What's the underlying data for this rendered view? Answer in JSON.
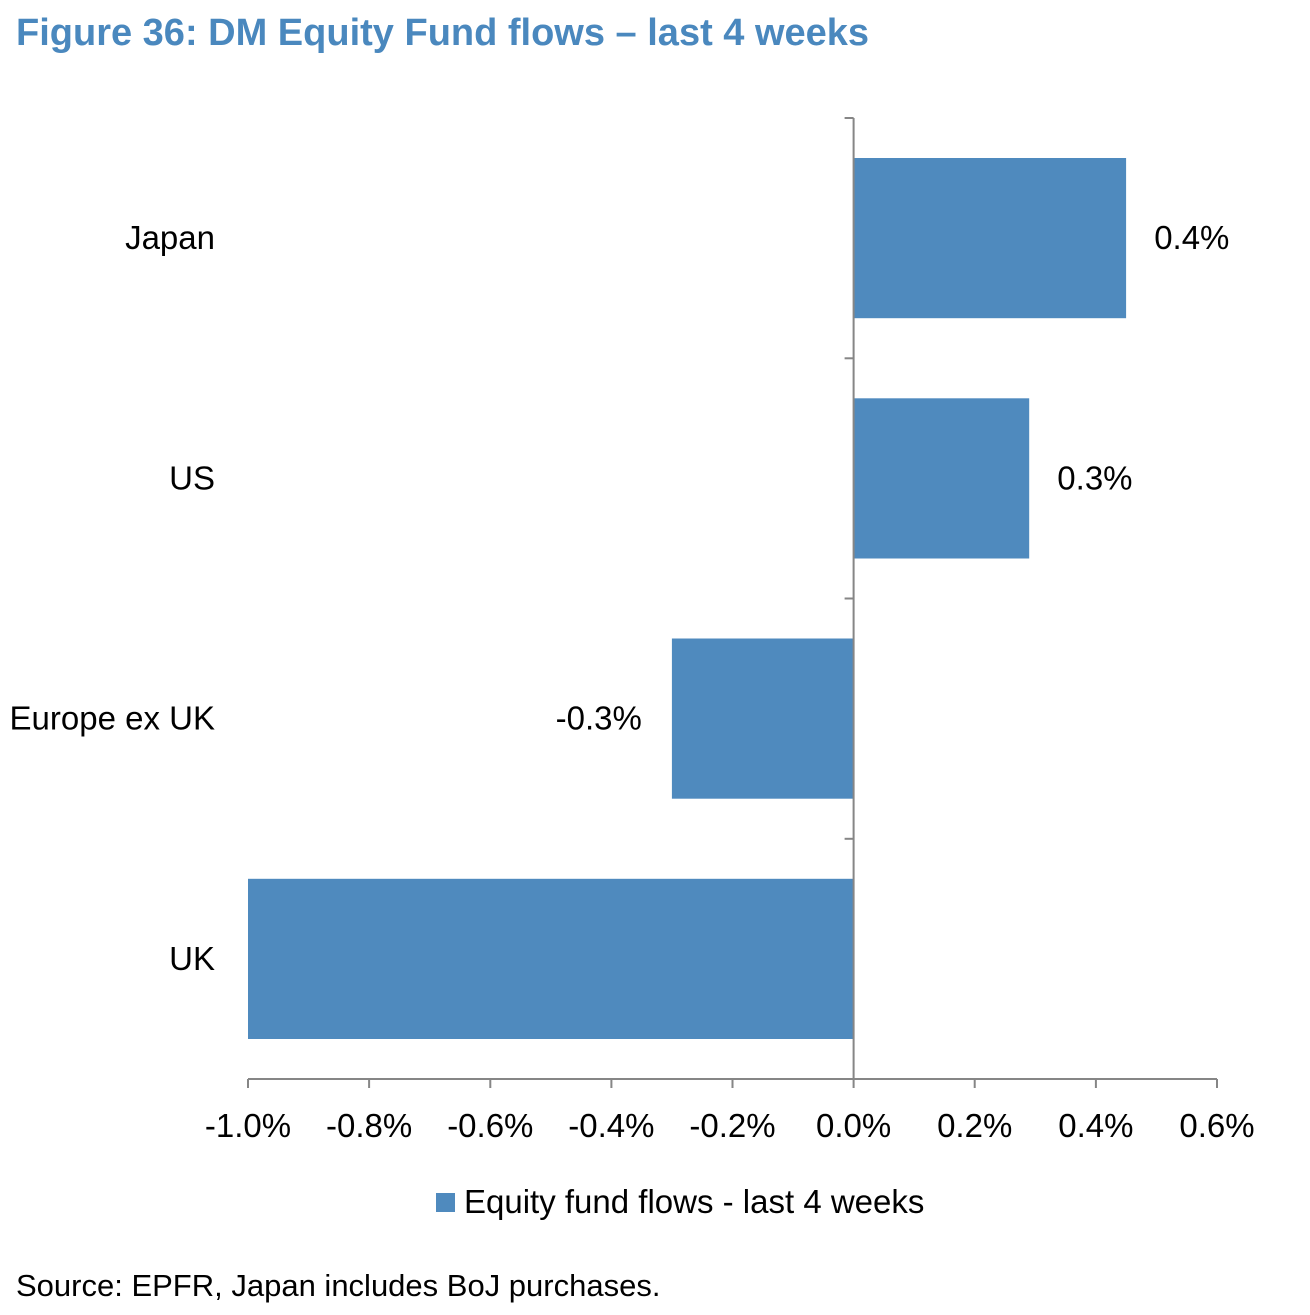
{
  "figure": {
    "title": "Figure 36: DM Equity Fund flows – last 4 weeks",
    "source": "Source: EPFR, Japan includes BoJ purchases."
  },
  "colors": {
    "title": "#4a88be",
    "bar": "#4f8abe",
    "axis": "#868686"
  },
  "chart_data": {
    "type": "bar",
    "orientation": "horizontal",
    "categories": [
      "Japan",
      "US",
      "Europe ex UK",
      "UK"
    ],
    "series": [
      {
        "name": "Equity fund flows - last 4 weeks",
        "values": [
          0.45,
          0.29,
          -0.3,
          -1.0
        ]
      }
    ],
    "data_labels": [
      "0.4%",
      "0.3%",
      "-0.3%",
      ""
    ],
    "xlim": [
      -1.0,
      0.6
    ],
    "x_ticks": [
      -1.0,
      -0.8,
      -0.6,
      -0.4,
      -0.2,
      0.0,
      0.2,
      0.4,
      0.6
    ],
    "x_tick_labels": [
      "-1.0%",
      "-0.8%",
      "-0.6%",
      "-0.4%",
      "-0.2%",
      "0.0%",
      "0.2%",
      "0.4%",
      "0.6%"
    ],
    "grid": false,
    "legend_position": "bottom"
  }
}
